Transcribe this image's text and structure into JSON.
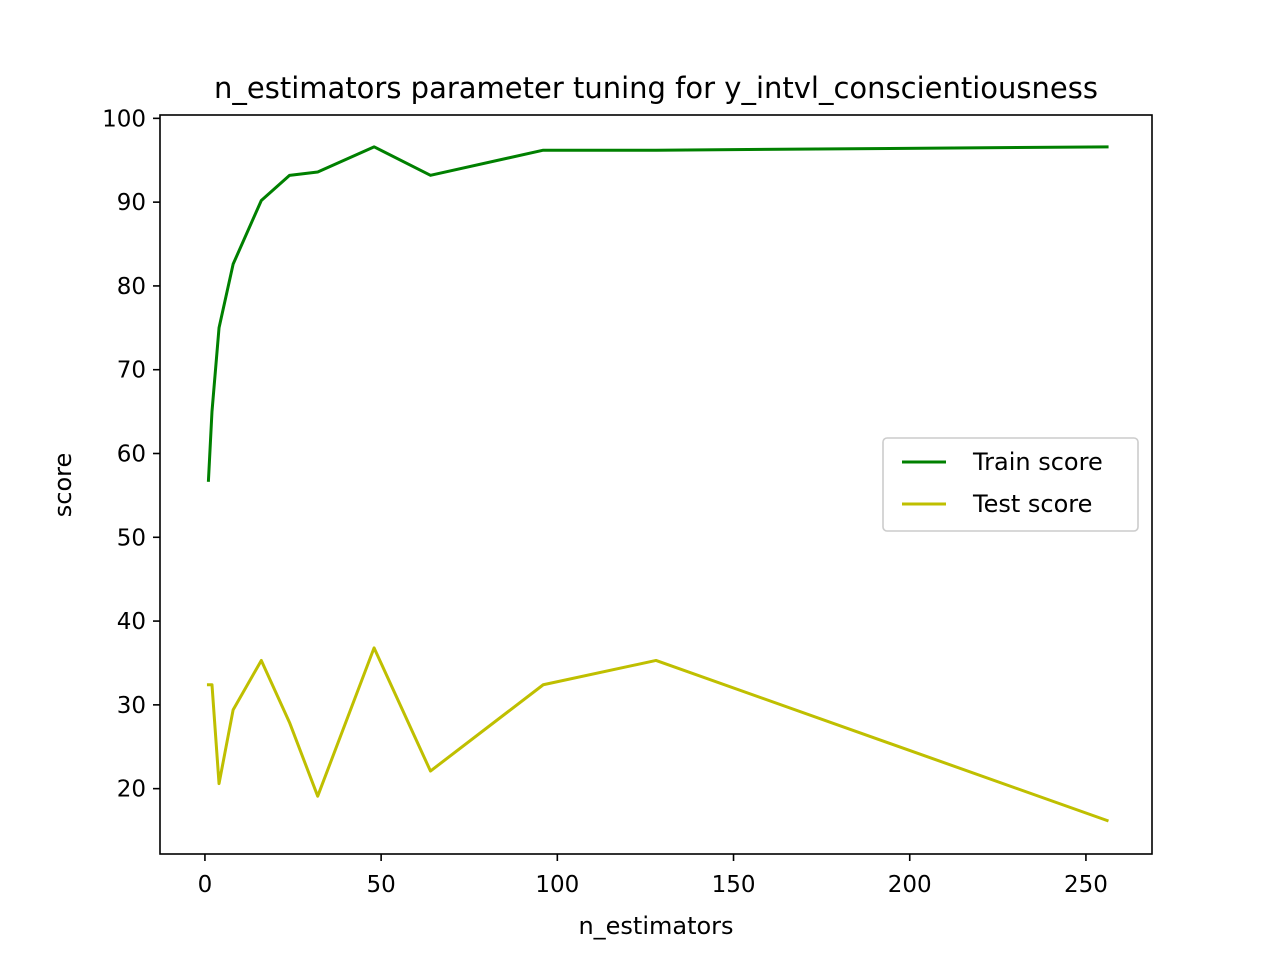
{
  "chart_data": {
    "type": "line",
    "title": "n_estimators parameter tuning for y_intvl_conscientiousness",
    "xlabel": "n_estimators",
    "ylabel": "score",
    "xlim": [
      -12.75,
      268.75
    ],
    "ylim": [
      12.2,
      100.4
    ],
    "xticks": [
      0,
      50,
      100,
      150,
      200,
      250
    ],
    "yticks": [
      20,
      30,
      40,
      50,
      60,
      70,
      80,
      90,
      100
    ],
    "grid": false,
    "legend_position": "center-right",
    "series": [
      {
        "name": "Train score",
        "color": "#008000",
        "x": [
          1,
          2,
          4,
          8,
          16,
          24,
          32,
          48,
          64,
          96,
          128,
          256
        ],
        "y": [
          56.8,
          65.0,
          75.0,
          82.6,
          90.2,
          93.2,
          93.6,
          96.6,
          93.2,
          96.2,
          96.2,
          96.6
        ]
      },
      {
        "name": "Test score",
        "color": "#bfbf00",
        "x": [
          1,
          2,
          4,
          8,
          16,
          24,
          32,
          48,
          64,
          96,
          128,
          256
        ],
        "y": [
          32.4,
          32.4,
          20.6,
          29.4,
          35.3,
          27.9,
          19.1,
          36.8,
          22.1,
          32.4,
          35.3,
          16.2
        ]
      }
    ]
  }
}
